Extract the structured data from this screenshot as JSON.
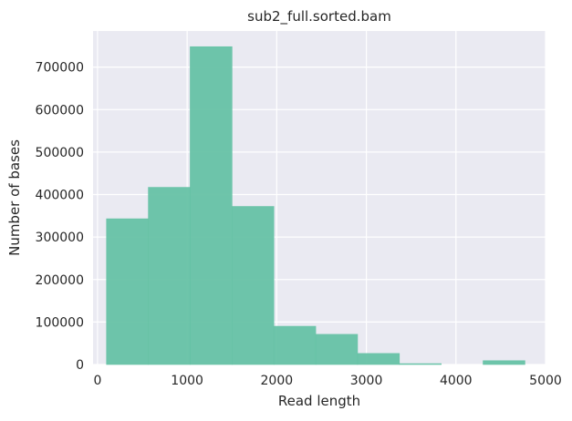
{
  "chart_data": {
    "type": "bar",
    "title": "sub2_full.sorted.bam",
    "xlabel": "Read length",
    "ylabel": "Number of bases",
    "xlim": [
      -50,
      5000
    ],
    "ylim": [
      0,
      785000
    ],
    "xticks": [
      0,
      1000,
      2000,
      3000,
      4000,
      5000
    ],
    "yticks": [
      0,
      100000,
      200000,
      300000,
      400000,
      500000,
      600000,
      700000
    ],
    "grid": true,
    "bin_edges": [
      100,
      567,
      1034,
      1501,
      1968,
      2435,
      2902,
      3369,
      3836,
      4303,
      4770
    ],
    "values": [
      343000,
      417000,
      748000,
      372000,
      90000,
      71000,
      26000,
      2000,
      0,
      9000
    ],
    "colors": {
      "bar": "#66c2a5",
      "background": "#eaeaf2",
      "grid": "#ffffff"
    }
  }
}
